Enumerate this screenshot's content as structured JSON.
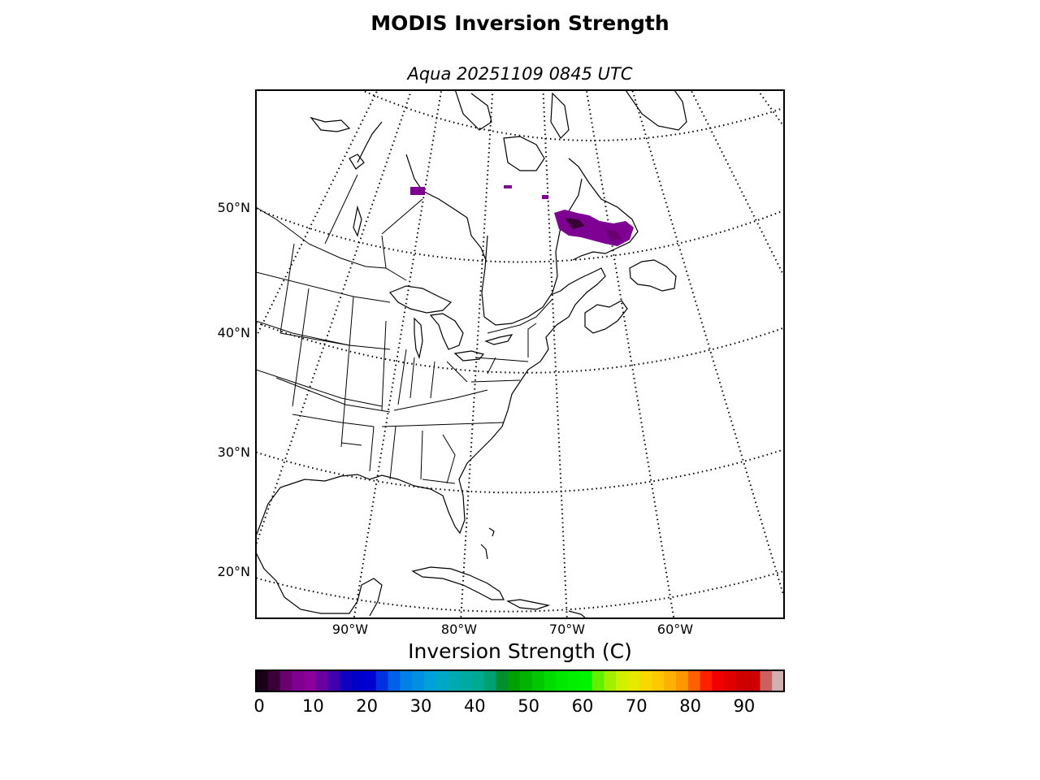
{
  "figure": {
    "title": "MODIS Inversion Strength",
    "subtitle": "Aqua 20251109 0845 UTC"
  },
  "map": {
    "projection": "Lambert conformal",
    "lat_labels": [
      "50°N",
      "40°N",
      "30°N",
      "20°N"
    ],
    "lon_labels": [
      "90°W",
      "80°W",
      "70°W",
      "60°W"
    ],
    "graticule_style": "dotted",
    "coastline_color": "#000000",
    "data_region": "Labrador / northern Quebec, inversion strength ~5-12 C"
  },
  "colorbar": {
    "label": "Inversion Strength (C)",
    "ticks": [
      "0",
      "10",
      "20",
      "30",
      "40",
      "50",
      "60",
      "70",
      "80",
      "90"
    ],
    "range": [
      0,
      98
    ],
    "colors": [
      "#1a0018",
      "#3a0038",
      "#6a0070",
      "#7e0092",
      "#8a0098",
      "#6a00a0",
      "#4000b0",
      "#1000c0",
      "#0000c8",
      "#0000d0",
      "#0030e0",
      "#0060e8",
      "#0080e8",
      "#0090e0",
      "#00a0d8",
      "#00a8c8",
      "#00aab0",
      "#00aaa0",
      "#00aa90",
      "#00a070",
      "#009030",
      "#00a000",
      "#00b400",
      "#00c800",
      "#00dc00",
      "#00e800",
      "#00f000",
      "#00f400",
      "#60f000",
      "#a0f000",
      "#d0f000",
      "#e8e800",
      "#f8d800",
      "#ffc800",
      "#ffb000",
      "#ff9800",
      "#ff6000",
      "#ff2000",
      "#f00000",
      "#e00000",
      "#d00000",
      "#cc0000",
      "#cc6060",
      "#d0b0b0"
    ]
  }
}
